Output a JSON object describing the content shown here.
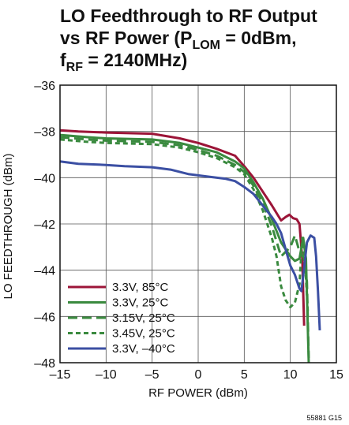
{
  "chart_data": {
    "type": "line",
    "title_line1": "LO Feedthrough to RF Output",
    "title_line2_pre": "vs RF Power (P",
    "title_line2_sub": "LOM",
    "title_line2_post": " = 0dBm,",
    "title_line3_pre": "f",
    "title_line3_sub": "RF",
    "title_line3_post": " = 2140MHz)",
    "xlabel": "RF POWER (dBm)",
    "ylabel": "LO FEEDTHROUGH (dBm)",
    "xlim": [
      -15,
      15
    ],
    "ylim": [
      -48,
      -36
    ],
    "xticks": [
      -15,
      -10,
      -5,
      0,
      5,
      10,
      15
    ],
    "yticks": [
      -48,
      -46,
      -44,
      -42,
      -40,
      -38,
      -36
    ],
    "x_tick_labels": [
      "–15",
      "–10",
      "–5",
      "0",
      "5",
      "10",
      "15"
    ],
    "y_tick_labels": [
      "–48",
      "–46",
      "–44",
      "–42",
      "–40",
      "–38",
      "–36"
    ],
    "grid": true,
    "legend_position": "bottom-left",
    "figure_id": "55881 G15",
    "series": [
      {
        "name": "3.3V, 85°C",
        "color": "#9c1538",
        "dash": "solid",
        "points": [
          [
            -15,
            -37.95
          ],
          [
            -13,
            -38.0
          ],
          [
            -10,
            -38.05
          ],
          [
            -5,
            -38.1
          ],
          [
            -2,
            -38.3
          ],
          [
            0,
            -38.5
          ],
          [
            2,
            -38.75
          ],
          [
            4,
            -39.05
          ],
          [
            5,
            -39.5
          ],
          [
            6,
            -40.0
          ],
          [
            7,
            -40.6
          ],
          [
            8,
            -41.2
          ],
          [
            9,
            -41.85
          ],
          [
            9.5,
            -41.7
          ],
          [
            9.9,
            -41.6
          ],
          [
            10.3,
            -41.75
          ],
          [
            10.7,
            -41.8
          ],
          [
            11.0,
            -42.0
          ],
          [
            11.3,
            -43.5
          ],
          [
            11.5,
            -46.4
          ]
        ]
      },
      {
        "name": "3.3V, 25°C",
        "color": "#3a8a3f",
        "dash": "solid",
        "points": [
          [
            -15,
            -38.15
          ],
          [
            -12,
            -38.25
          ],
          [
            -10,
            -38.3
          ],
          [
            -5,
            -38.35
          ],
          [
            -2,
            -38.5
          ],
          [
            0,
            -38.7
          ],
          [
            2,
            -38.9
          ],
          [
            4,
            -39.3
          ],
          [
            5,
            -39.6
          ],
          [
            6,
            -40.2
          ],
          [
            7,
            -40.9
          ],
          [
            8,
            -41.8
          ],
          [
            9,
            -42.8
          ],
          [
            10,
            -43.4
          ],
          [
            10.5,
            -43.6
          ],
          [
            11,
            -43.5
          ],
          [
            11.4,
            -42.6
          ],
          [
            11.7,
            -43.5
          ],
          [
            12.0,
            -48.0
          ]
        ]
      },
      {
        "name": "3.15V, 25°C",
        "color": "#3a8a3f",
        "dash": "long",
        "points": [
          [
            -15,
            -38.25
          ],
          [
            -12,
            -38.35
          ],
          [
            -10,
            -38.4
          ],
          [
            -5,
            -38.45
          ],
          [
            -2,
            -38.6
          ],
          [
            0,
            -38.8
          ],
          [
            2,
            -39.05
          ],
          [
            4,
            -39.45
          ],
          [
            5,
            -39.75
          ],
          [
            6,
            -40.35
          ],
          [
            7,
            -41.1
          ],
          [
            8,
            -42.1
          ],
          [
            9,
            -43.4
          ],
          [
            10,
            -43.0
          ],
          [
            10.5,
            -42.5
          ],
          [
            11,
            -43.2
          ],
          [
            11.5,
            -43.5
          ],
          [
            11.8,
            -44.5
          ],
          [
            12.0,
            -47.8
          ]
        ]
      },
      {
        "name": "3.45V, 25°C",
        "color": "#3a8a3f",
        "dash": "short",
        "points": [
          [
            -15,
            -38.35
          ],
          [
            -12,
            -38.45
          ],
          [
            -10,
            -38.5
          ],
          [
            -5,
            -38.55
          ],
          [
            -2,
            -38.7
          ],
          [
            0,
            -38.9
          ],
          [
            2,
            -39.15
          ],
          [
            4,
            -39.55
          ],
          [
            5,
            -39.85
          ],
          [
            6,
            -40.5
          ],
          [
            7,
            -41.4
          ],
          [
            8,
            -42.6
          ],
          [
            8.5,
            -43.4
          ],
          [
            9,
            -44.7
          ],
          [
            9.5,
            -45.3
          ],
          [
            10,
            -45.6
          ],
          [
            10.5,
            -45.4
          ],
          [
            11,
            -44.6
          ],
          [
            11.3,
            -42.6
          ],
          [
            11.6,
            -43.6
          ],
          [
            11.9,
            -45.8
          ]
        ]
      },
      {
        "name": "3.3V, –40°C",
        "color": "#3b4fa3",
        "dash": "solid",
        "points": [
          [
            -15,
            -39.3
          ],
          [
            -13,
            -39.4
          ],
          [
            -10,
            -39.45
          ],
          [
            -8,
            -39.5
          ],
          [
            -5,
            -39.55
          ],
          [
            -3,
            -39.65
          ],
          [
            -1,
            -39.85
          ],
          [
            1,
            -39.95
          ],
          [
            3,
            -40.05
          ],
          [
            4,
            -40.15
          ],
          [
            5,
            -40.4
          ],
          [
            6,
            -40.7
          ],
          [
            7,
            -41.2
          ],
          [
            8,
            -41.7
          ],
          [
            8.5,
            -42.0
          ],
          [
            9,
            -42.4
          ],
          [
            9.5,
            -43.1
          ],
          [
            10,
            -43.8
          ],
          [
            10.5,
            -44.2
          ],
          [
            11,
            -44.8
          ],
          [
            11.2,
            -44.9
          ],
          [
            11.5,
            -43.9
          ],
          [
            11.8,
            -42.8
          ],
          [
            12.2,
            -42.5
          ],
          [
            12.6,
            -42.6
          ],
          [
            12.8,
            -43.4
          ],
          [
            13.0,
            -44.9
          ],
          [
            13.2,
            -46.6
          ]
        ]
      }
    ]
  }
}
